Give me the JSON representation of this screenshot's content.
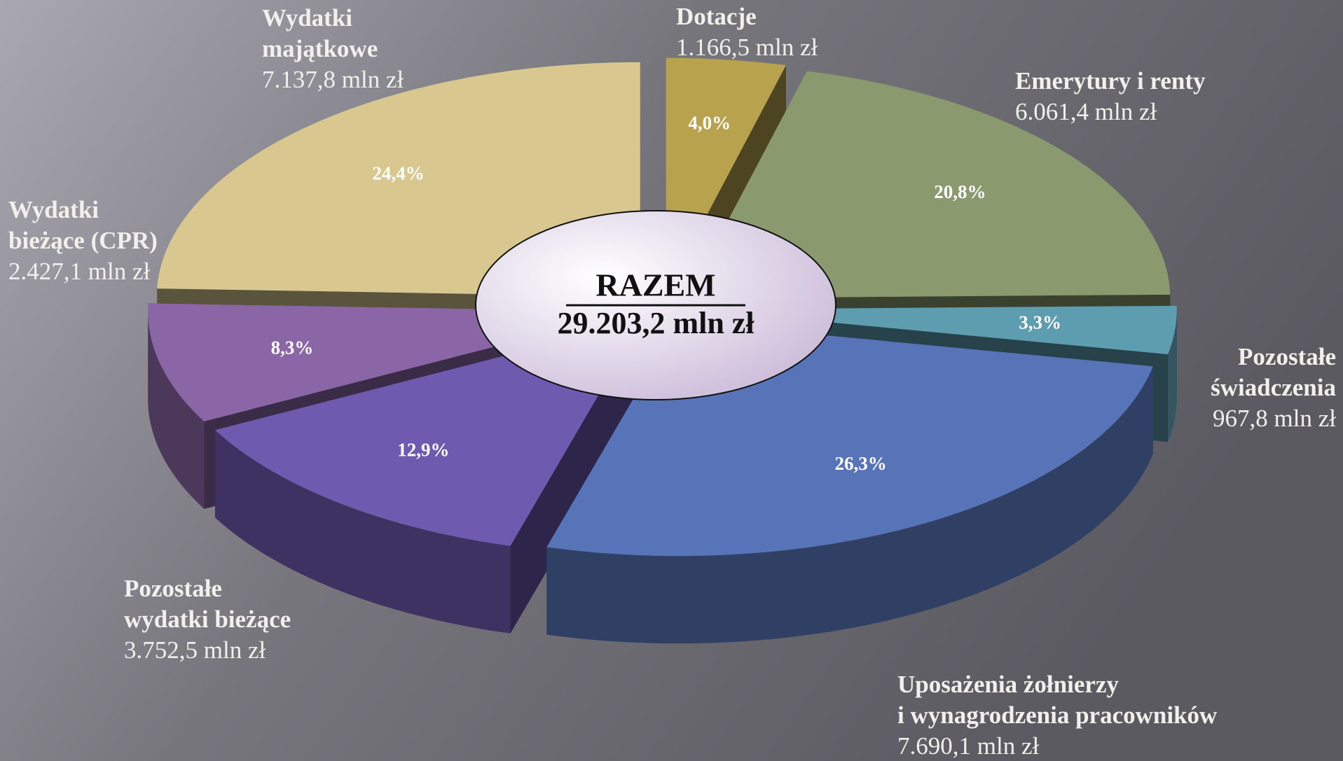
{
  "chart_data": {
    "type": "pie",
    "title": "RAZEM",
    "total": 29203.2,
    "total_label": "29.203,2 mln zł",
    "categories": [
      [
        "Dotacje"
      ],
      [
        "Emerytury i renty"
      ],
      [
        "Pozostałe",
        "świadczenia"
      ],
      [
        "Uposażenia żołnierzy",
        "i wynagrodzenia pracowników"
      ],
      [
        "Pozostałe",
        "wydatki bieżące"
      ],
      [
        "Wydatki",
        "bieżące (CPR)"
      ],
      [
        "Wydatki",
        "majątkowe"
      ]
    ],
    "values": [
      1166.5,
      6061.4,
      967.8,
      7690.1,
      3752.5,
      2427.1,
      7137.8
    ],
    "value_labels": [
      "1.166,5 mln zł",
      "6.061,4 mln zł",
      "967,8 mln zł",
      "7.690,1 mln zł",
      "3.752,5 mln zł",
      "2.427,1 mln zł",
      "7.137,8 mln zł"
    ],
    "shares": [
      4.0,
      20.8,
      3.3,
      26.3,
      12.9,
      8.3,
      24.4
    ],
    "share_labels": [
      "4,0%",
      "20,8%",
      "3,3%",
      "26,3%",
      "12,9%",
      "8,3%",
      "24,4%"
    ],
    "colors": [
      "#b8a24e",
      "#8a9a6e",
      "#5e9db0",
      "#5874b8",
      "#6e5bb0",
      "#8a66a6",
      "#d8c890"
    ]
  }
}
